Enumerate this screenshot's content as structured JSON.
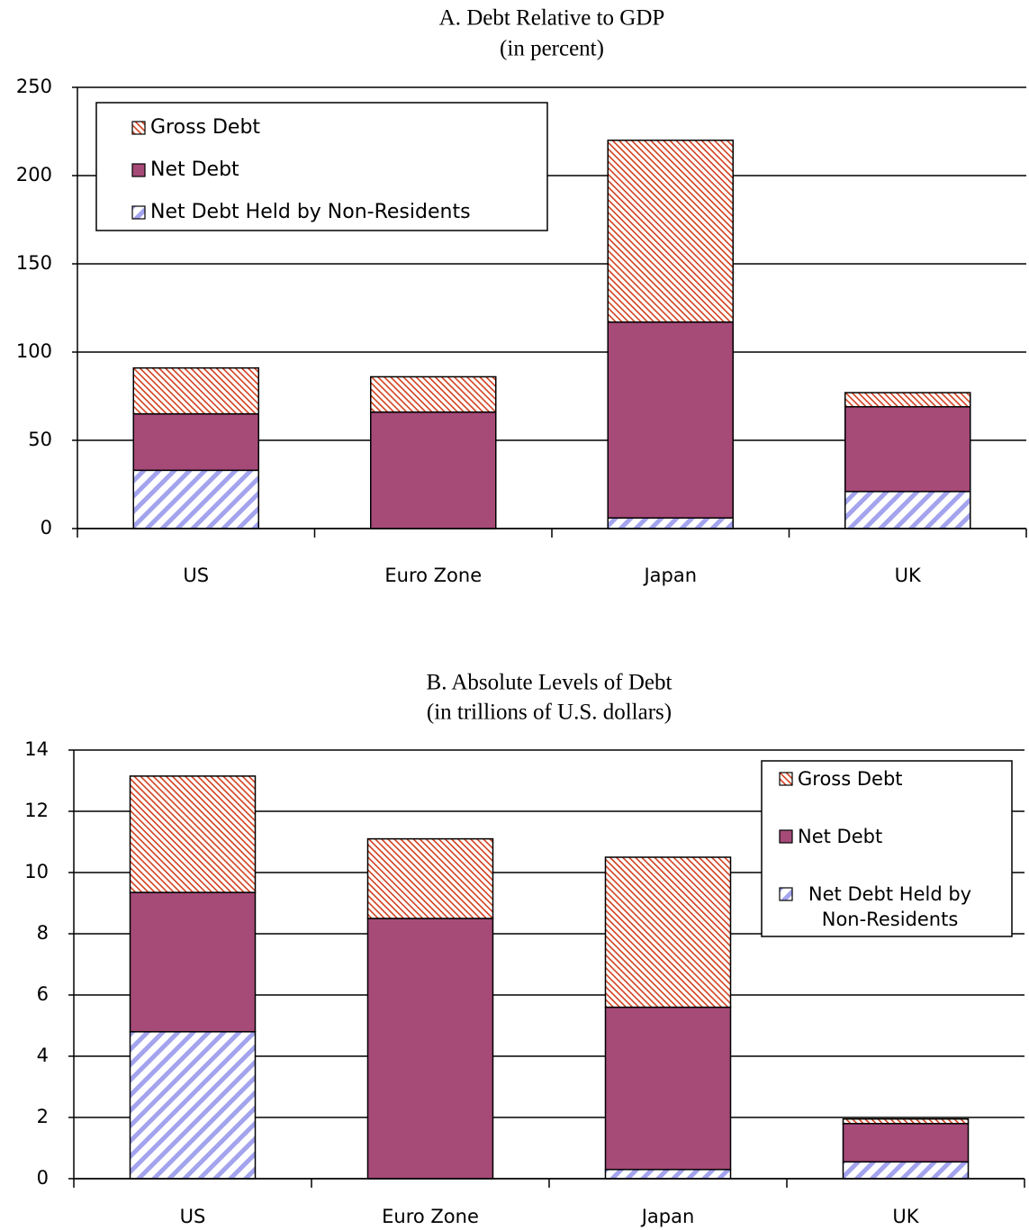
{
  "chart_data": [
    {
      "type": "stacked-bar",
      "title": "A. Debt Relative to GDP",
      "subtitle": "(in percent)",
      "categories": [
        "US",
        "Euro Zone",
        "Japan",
        "UK"
      ],
      "series": [
        {
          "name": "Net Debt Held by Non-Residents",
          "color": "#a3a3ee",
          "fill_style": "wide-hatch",
          "values": [
            33,
            0,
            6,
            21
          ]
        },
        {
          "name": "Net Debt",
          "color": "#a64a78",
          "fill_style": "solid",
          "values": [
            32,
            66,
            111,
            48
          ]
        },
        {
          "name": "Gross Debt",
          "color": "#d2401e",
          "fill_style": "dense-hatch",
          "values": [
            26,
            20,
            103,
            8
          ]
        }
      ],
      "ylim": [
        0,
        250
      ],
      "yticks": [
        0,
        50,
        100,
        150,
        200,
        250
      ],
      "grid": true,
      "legend": "upper left"
    },
    {
      "type": "stacked-bar",
      "title": "B. Absolute Levels of Debt",
      "subtitle": "(in trillions of U.S. dollars)",
      "categories": [
        "US",
        "Euro Zone",
        "Japan",
        "UK"
      ],
      "series": [
        {
          "name": "Net Debt Held by Non-Residents",
          "color": "#a3a3ee",
          "fill_style": "wide-hatch",
          "values": [
            4.8,
            0,
            0.3,
            0.55
          ]
        },
        {
          "name": "Net Debt",
          "color": "#a64a78",
          "fill_style": "solid",
          "values": [
            4.55,
            8.5,
            5.3,
            1.25
          ]
        },
        {
          "name": "Gross Debt",
          "color": "#d2401e",
          "fill_style": "dense-hatch",
          "values": [
            3.8,
            2.6,
            4.9,
            0.15
          ]
        }
      ],
      "ylim": [
        0,
        14
      ],
      "yticks": [
        0,
        2,
        4,
        6,
        8,
        10,
        12,
        14
      ],
      "grid": true,
      "legend": "upper right"
    }
  ]
}
